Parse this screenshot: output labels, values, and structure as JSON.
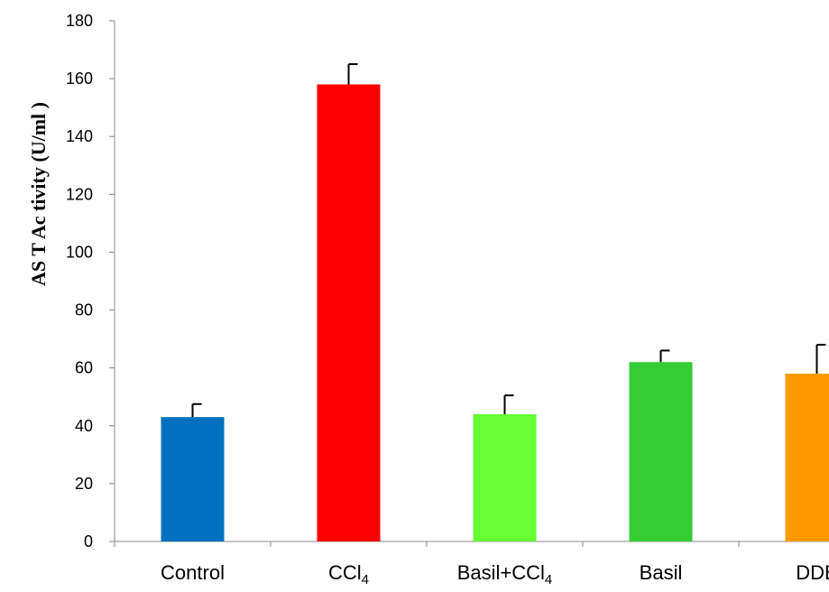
{
  "chart_data": {
    "type": "bar",
    "ylabel": "AS T Ac tivity (U/ml )",
    "xlabel": "",
    "ylim": [
      0,
      180
    ],
    "yticks": [
      0,
      20,
      40,
      60,
      80,
      100,
      120,
      140,
      160,
      180
    ],
    "grid": false,
    "categories": [
      {
        "base": "Control",
        "sub": "",
        "suffix": ""
      },
      {
        "base": "CCl",
        "sub": "4",
        "suffix": ""
      },
      {
        "base": "Basil+CCl",
        "sub": "4",
        "suffix": ""
      },
      {
        "base": "Basil",
        "sub": "",
        "suffix": ""
      },
      {
        "base": "DDB",
        "sub": "",
        "suffix": ""
      }
    ],
    "values": [
      43,
      158,
      44,
      62,
      58
    ],
    "errors": [
      4.5,
      7,
      6.5,
      4,
      10
    ],
    "colors": [
      "#0070C0",
      "#FF0000",
      "#66FF33",
      "#33CC33",
      "#FF9900"
    ]
  }
}
